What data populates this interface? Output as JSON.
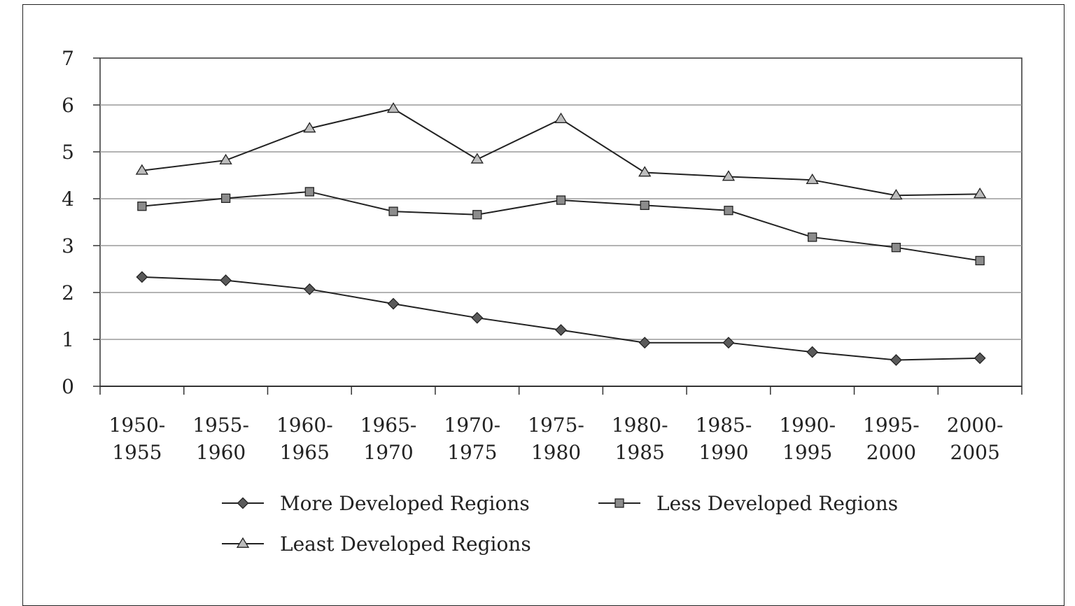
{
  "chart_data": {
    "type": "line",
    "title": "",
    "xlabel": "",
    "ylabel": "",
    "ylim": [
      0,
      7
    ],
    "yticks": [
      "0",
      "1",
      "2",
      "3",
      "4",
      "5",
      "6",
      "7"
    ],
    "categories": [
      [
        "1950-",
        "1955"
      ],
      [
        "1955-",
        "1960"
      ],
      [
        "1960-",
        "1965"
      ],
      [
        "1965-",
        "1970"
      ],
      [
        "1970-",
        "1975"
      ],
      [
        "1975-",
        "1980"
      ],
      [
        "1980-",
        "1985"
      ],
      [
        "1985-",
        "1990"
      ],
      [
        "1990-",
        "1995"
      ],
      [
        "1995-",
        "2000"
      ],
      [
        "2000-",
        "2005"
      ]
    ],
    "grid": true,
    "legend_position": "bottom",
    "series": [
      {
        "name": "More Developed Regions",
        "marker": "diamond",
        "color": "#5a5a5a",
        "values": [
          2.33,
          2.26,
          2.07,
          1.76,
          1.46,
          1.2,
          0.93,
          0.93,
          0.73,
          0.56,
          0.6
        ]
      },
      {
        "name": "Less Developed Regions",
        "marker": "square",
        "color": "#8c8c8c",
        "values": [
          3.84,
          4.01,
          4.15,
          3.73,
          3.66,
          3.97,
          3.86,
          3.75,
          3.18,
          2.96,
          2.68
        ]
      },
      {
        "name": "Least Developed Regions",
        "marker": "triangle",
        "color": "#bdbdbd",
        "values": [
          4.6,
          4.82,
          5.5,
          5.92,
          4.84,
          5.7,
          4.56,
          4.47,
          4.4,
          4.07,
          4.1
        ]
      }
    ]
  }
}
